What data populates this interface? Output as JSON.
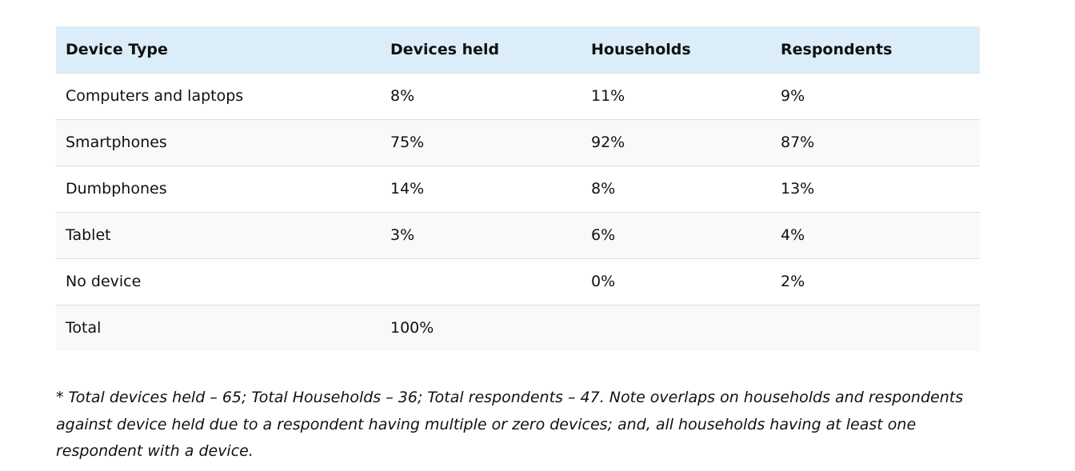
{
  "table": {
    "headers": [
      "Device Type",
      "Devices held",
      "Households",
      "Respondents"
    ],
    "rows": [
      [
        "Computers and laptops",
        "8%",
        "11%",
        "9%"
      ],
      [
        "Smartphones",
        "75%",
        "92%",
        "87%"
      ],
      [
        "Dumbphones",
        "14%",
        "8%",
        "13%"
      ],
      [
        "Tablet",
        "3%",
        "6%",
        "4%"
      ],
      [
        "No device",
        "",
        "0%",
        "2%"
      ],
      [
        "Total",
        "100%",
        "",
        ""
      ]
    ]
  },
  "footnote": "* Total devices held – 65; Total Households – 36; Total respondents – 47. Note overlaps on households and respondents against device held due to a respondent having multiple or zero devices; and, all households having at least one respondent with a device."
}
